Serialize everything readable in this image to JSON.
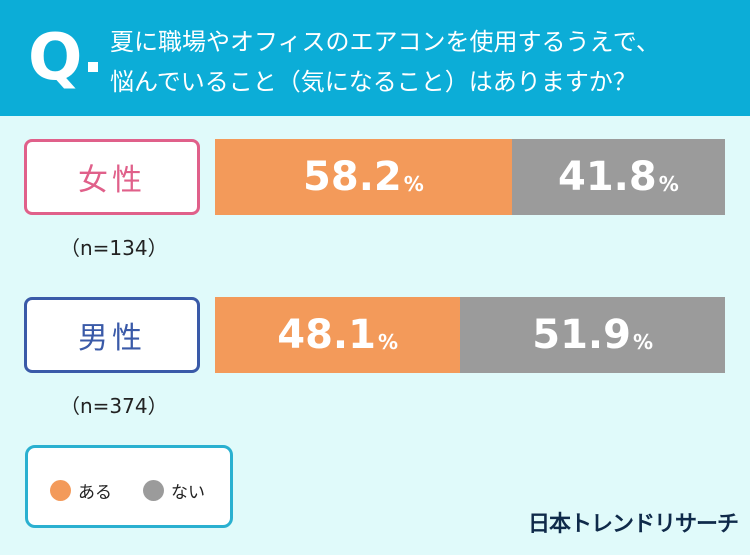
{
  "header": {
    "q": "Q",
    "line1": "夏に職場やオフィスのエアコンを使用するうえで、",
    "line2": "悩んでいること（気になること）はありますか？"
  },
  "chart_data": {
    "type": "bar",
    "stacked": true,
    "orientation": "horizontal",
    "title": "夏に職場やオフィスのエアコンを使用するうえで、悩んでいること（気になること）はありますか？",
    "categories": [
      "女性",
      "男性"
    ],
    "sample_sizes": [
      "（n=134）",
      "（n=374）"
    ],
    "series": [
      {
        "name": "ある",
        "color": "#f39a5a",
        "values": [
          58.2,
          48.1
        ]
      },
      {
        "name": "ない",
        "color": "#9b9b9b",
        "values": [
          41.8,
          51.9
        ]
      }
    ],
    "unit": "%",
    "xlim": [
      0,
      100
    ],
    "legend": "bottom-left"
  },
  "logo": "日本トレンドリサーチ"
}
